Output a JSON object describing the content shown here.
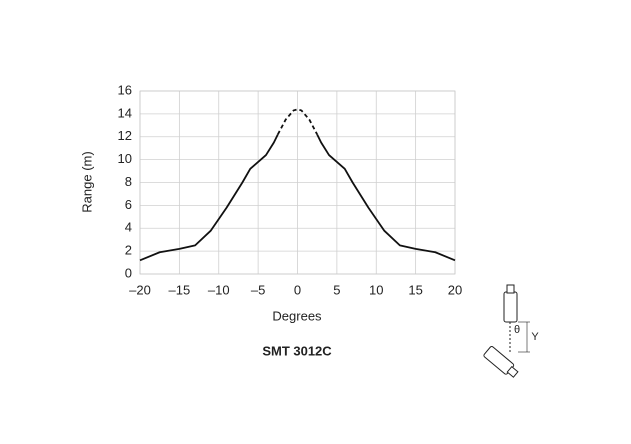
{
  "chart_data": {
    "type": "line",
    "title": "SMT 3012C",
    "xlabel": "Degrees",
    "ylabel": "Range (m)",
    "x": [
      -20,
      -17.5,
      -15,
      -13,
      -11,
      -9,
      -7,
      -6,
      -4,
      -3,
      -2.5,
      -1.5,
      -0.5,
      0,
      0.5,
      1.5,
      2.5,
      3,
      4,
      6,
      7,
      9,
      11,
      13,
      15,
      17.5,
      20
    ],
    "series": [
      {
        "color": "#111111",
        "dash": false,
        "values": [
          1.2,
          1.9,
          2.2,
          2.5,
          3.8,
          5.8,
          8.0,
          9.2,
          10.4,
          11.5,
          12.2,
          null,
          null,
          null,
          null,
          null,
          12.2,
          11.5,
          10.4,
          9.2,
          8.0,
          5.8,
          3.8,
          2.5,
          2.2,
          1.9,
          1.2
        ]
      },
      {
        "color": "#111111",
        "dash": true,
        "values": [
          null,
          null,
          null,
          null,
          null,
          null,
          null,
          null,
          null,
          null,
          12.2,
          13.5,
          14.3,
          14.4,
          14.3,
          13.5,
          12.2,
          null,
          null,
          null,
          null,
          null,
          null,
          null,
          null,
          null,
          null
        ]
      }
    ],
    "xlim": [
      -20,
      20
    ],
    "xticks": [
      {
        "value": -20,
        "label": "–20"
      },
      {
        "value": -15,
        "label": "–15"
      },
      {
        "value": -10,
        "label": "–10"
      },
      {
        "value": -5,
        "label": "–5"
      },
      0,
      5,
      10,
      15,
      20
    ],
    "ylim": [
      0,
      16
    ],
    "yticks": [
      0,
      2,
      4,
      6,
      8,
      10,
      12,
      14,
      16
    ],
    "grid": true,
    "diagram_labels": {
      "angle": "θ",
      "distance": "Y"
    }
  }
}
